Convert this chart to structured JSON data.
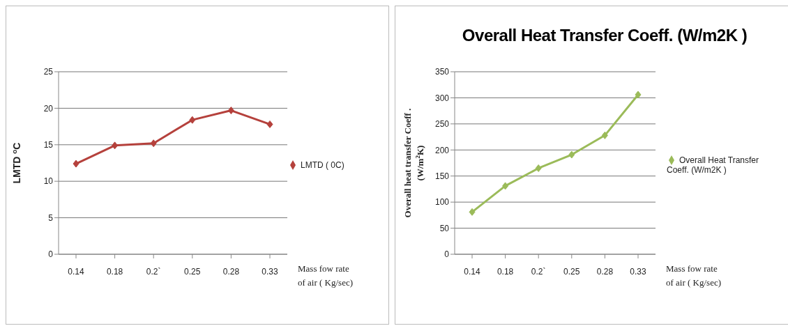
{
  "chart_data": [
    {
      "type": "line",
      "ylabel": "LMTD $^{o}$C",
      "xlabel": "Mass fow rate of air ( Kg/sec)",
      "categories": [
        "0.14",
        "0.18",
        "0.2`",
        "0.25",
        "0.28",
        "0.33"
      ],
      "series": [
        {
          "name": "LMTD ( 0C)",
          "color": "#b5413c",
          "values": [
            12.4,
            14.9,
            15.2,
            18.4,
            19.7,
            17.8
          ]
        }
      ],
      "ylim": [
        0,
        25
      ],
      "yticks": [
        0,
        5,
        10,
        15,
        20,
        25
      ],
      "grid": "y",
      "legend": "right",
      "marker": "diamond",
      "line_style": "solid"
    },
    {
      "type": "line",
      "title": "Overall Heat Transfer Coeff. (W/m2K )",
      "ylabel": "Overall heat transfer Coeff . (W/m$^{2}$K)",
      "xlabel": "Mass fow rate of air ( Kg/sec)",
      "categories": [
        "0.14",
        "0.18",
        "0.2`",
        "0.25",
        "0.28",
        "0.33"
      ],
      "series": [
        {
          "name": "Overall Heat Transfer Coeff. (W/m2K )",
          "color": "#9bbb59",
          "values": [
            81,
            131,
            165,
            191,
            228,
            306
          ]
        }
      ],
      "ylim": [
        0,
        350
      ],
      "yticks": [
        0,
        50,
        100,
        150,
        200,
        250,
        300,
        350
      ],
      "grid": "y",
      "legend": "right",
      "marker": "diamond",
      "line_style": "solid"
    }
  ]
}
